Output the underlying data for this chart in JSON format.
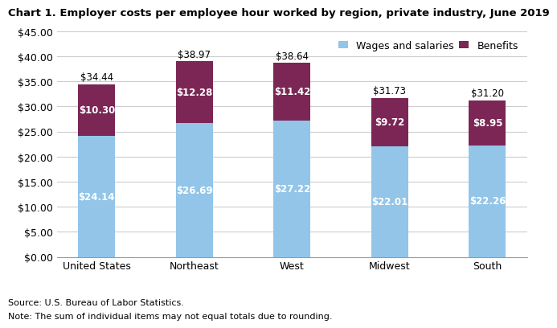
{
  "title": "Chart 1. Employer costs per employee hour worked by region, private industry, June 2019",
  "categories": [
    "United States",
    "Northeast",
    "West",
    "Midwest",
    "South"
  ],
  "wages": [
    24.14,
    26.69,
    27.22,
    22.01,
    22.26
  ],
  "benefits": [
    10.3,
    12.28,
    11.42,
    9.72,
    8.95
  ],
  "totals": [
    34.44,
    38.97,
    38.64,
    31.73,
    31.2
  ],
  "wages_color": "#92C5E8",
  "benefits_color": "#7B2655",
  "wages_label": "Wages and salaries",
  "benefits_label": "Benefits",
  "ylim": [
    0,
    45
  ],
  "yticks": [
    0,
    5,
    10,
    15,
    20,
    25,
    30,
    35,
    40,
    45
  ],
  "note_line1": "Note: The sum of individual items may not equal totals due to rounding.",
  "note_line2": "Source: U.S. Bureau of Labor Statistics.",
  "title_fontsize": 9.5,
  "bar_label_fontsize": 8.5,
  "tick_fontsize": 9.0,
  "note_fontsize": 8.0,
  "legend_fontsize": 9.0,
  "total_label_fontsize": 8.5,
  "bar_width": 0.38,
  "background_color": "#ffffff",
  "grid_color": "#cccccc"
}
